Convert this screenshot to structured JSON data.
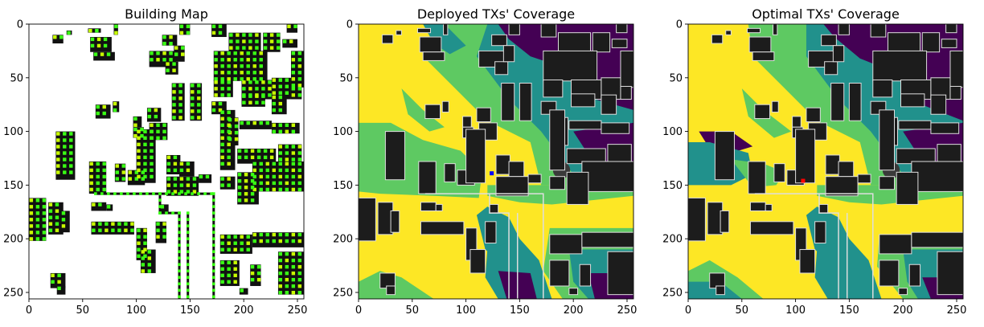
{
  "colors": {
    "building": "#111111",
    "building_cov": "#1c1c1c",
    "outline": "#dedede",
    "tx_dot_a": "#39ff14",
    "tx_dot_b": "#c8ff00",
    "yellow": "#fde725",
    "green": "#5ec962",
    "teal": "#21918c",
    "purple": "#440154",
    "deployed_tx": "#0000ff",
    "optimal_tx": "#ff0000"
  },
  "chart_data": [
    {
      "type": "heatmap",
      "title": "Building Map",
      "xlim": [
        0,
        256
      ],
      "ylim": [
        256,
        0
      ],
      "xticks": [
        "0",
        "50",
        "100",
        "150",
        "200",
        "250"
      ],
      "yticks": [
        "0",
        "50",
        "100",
        "150",
        "200",
        "250"
      ],
      "layers": [
        "buildings",
        "candidate-tx-grid"
      ]
    },
    {
      "type": "heatmap",
      "title": "Deployed TXs' Coverage",
      "xlim": [
        0,
        256
      ],
      "ylim": [
        256,
        0
      ],
      "xticks": [
        "0",
        "50",
        "100",
        "150",
        "200",
        "250"
      ],
      "yticks": [
        "0",
        "50",
        "100",
        "150",
        "200",
        "250"
      ],
      "tx_points": [
        {
          "x": 124,
          "y": 139
        }
      ]
    },
    {
      "type": "heatmap",
      "title": "Optimal TXs' Coverage",
      "xlim": [
        0,
        256
      ],
      "ylim": [
        256,
        0
      ],
      "xticks": [
        "0",
        "50",
        "100",
        "150",
        "200",
        "250"
      ],
      "yticks": [
        "0",
        "50",
        "100",
        "150",
        "200",
        "250"
      ],
      "tx_points": [
        {
          "x": 107,
          "y": 146
        }
      ]
    }
  ]
}
